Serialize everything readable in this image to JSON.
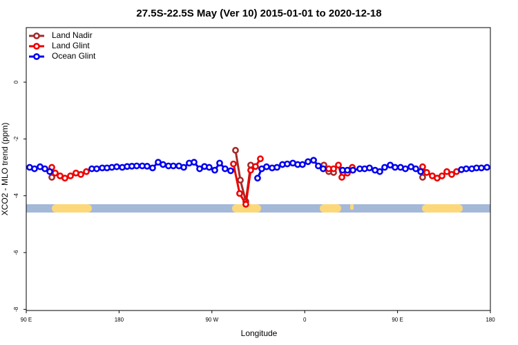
{
  "chart_data": {
    "type": "line",
    "title": "27.5S-22.5S May (Ver 10)   2015-01-01 to 2020-12-18",
    "x_label": "Longitude",
    "y_label": "XCO2 - MLO trend (ppm)",
    "xlim": [
      90,
      540
    ],
    "ylim": [
      -8.04,
      1.92
    ],
    "xticks": [
      {
        "value": 90,
        "label": "90 E"
      },
      180,
      {
        "value": 270,
        "label": "90 W"
      },
      {
        "value": 360,
        "label": "0"
      },
      {
        "value": 450,
        "label": "90 E"
      },
      {
        "value": 540,
        "label": "180"
      }
    ],
    "yticks": [
      -8,
      -6,
      -4,
      -2,
      0
    ],
    "legend": "top-left",
    "series": [
      {
        "name": "Land Nadir",
        "color": "#a52a2a",
        "x": [
          114.8,
          null,
          292.9,
          297.6,
          302.9,
          307.6,
          null,
          378.6,
          383.3,
          388,
          null,
          474.3
        ],
        "values": [
          -3.35,
          null,
          -2.4,
          -3.45,
          -4.2,
          -2.92,
          null,
          -2.92,
          -3.15,
          -3.18,
          null,
          -3.35
        ]
      },
      {
        "name": "Land Glint",
        "color": "#ee0000",
        "x": [
          114.8,
          118.1,
          122.8,
          127.5,
          132.9,
          138.2,
          142.9,
          148.3,
          null,
          290.9,
          296.9,
          302.9,
          307.6,
          312.3,
          317,
          null,
          377.9,
          383.3,
          388,
          392.7,
          396,
          401.4,
          406.1,
          null,
          474.3,
          478.3,
          483.7,
          488.4,
          493.1,
          497.8,
          502.5,
          507.2
        ],
        "values": [
          -3.0,
          -3.2,
          -3.3,
          -3.38,
          -3.3,
          -3.2,
          -3.25,
          -3.15,
          null,
          -2.88,
          -3.92,
          -4.3,
          -3.1,
          -2.97,
          -2.7,
          null,
          -3.05,
          -3.05,
          -3.05,
          -2.92,
          -3.35,
          -3.2,
          -3.0,
          null,
          -2.98,
          -3.18,
          -3.3,
          -3.38,
          -3.3,
          -3.15,
          -3.25,
          -3.15
        ]
      },
      {
        "name": "Ocean Glint",
        "color": "#0000ee",
        "x": [
          93.3,
          98,
          103.4,
          108.1,
          112.8,
          null,
          153.6,
          158.3,
          163.7,
          168.3,
          173,
          177.7,
          183.1,
          187.8,
          192.4,
          197.1,
          202.5,
          207.2,
          212.5,
          217.9,
          222.6,
          227.9,
          232.6,
          238,
          242.7,
          248,
          252.7,
          258.1,
          262.8,
          267.4,
          272.8,
          277.5,
          282.8,
          288.2,
          null,
          314.3,
          318.3,
          323,
          328.4,
          333.1,
          338.4,
          343.1,
          348.5,
          353.2,
          357.8,
          363.2,
          368.6,
          373.2,
          377.9,
          null,
          396.7,
          401.4,
          406.7,
          413.4,
          418.1,
          422.8,
          428.2,
          432.8,
          437.5,
          442.9,
          447.6,
          452.9,
          457.6,
          463,
          467.7,
          472.4,
          null,
          511.9,
          516.6,
          522,
          526.6,
          531.3,
          536.7
        ],
        "values": [
          -3.0,
          -3.05,
          -2.98,
          -3.05,
          -3.15,
          null,
          -3.05,
          -3.05,
          -3.02,
          -3.02,
          -3.0,
          -2.98,
          -3.0,
          -2.97,
          -2.96,
          -2.95,
          -2.95,
          -2.96,
          -3.02,
          -2.82,
          -2.9,
          -2.95,
          -2.95,
          -2.95,
          -3.0,
          -2.85,
          -2.82,
          -3.05,
          -2.97,
          -3.0,
          -3.1,
          -2.85,
          -3.05,
          -3.12,
          null,
          -3.38,
          -3.05,
          -2.98,
          -3.02,
          -3.0,
          -2.9,
          -2.88,
          -2.85,
          -2.9,
          -2.9,
          -2.8,
          -2.75,
          -2.95,
          -3.05,
          null,
          -3.1,
          -3.1,
          -3.1,
          -3.05,
          -3.05,
          -3.02,
          -3.1,
          -3.15,
          -3.0,
          -2.92,
          -3.0,
          -3.0,
          -3.05,
          -2.98,
          -3.05,
          -3.15,
          null,
          -3.08,
          -3.05,
          -3.05,
          -3.02,
          -3.02,
          -3.0
        ]
      }
    ]
  }
}
